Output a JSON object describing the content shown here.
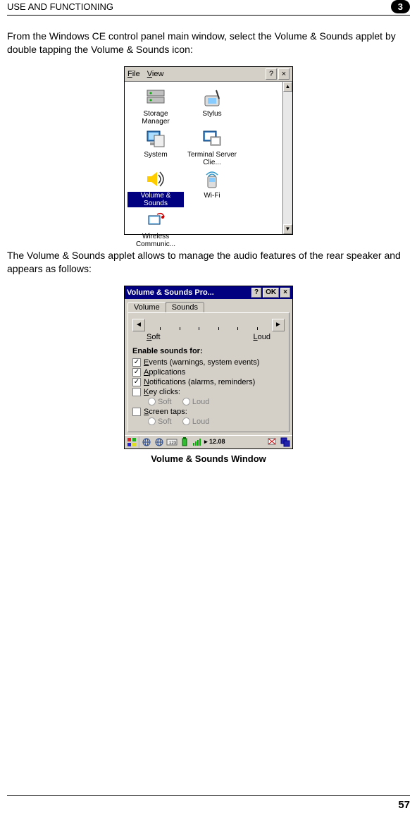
{
  "header": {
    "title": "USE AND FUNCTIONING",
    "badge": "3"
  },
  "intro_text": "From the Windows CE control panel main window, select the Volume & Sounds applet by double tapping the Volume & Sounds icon:",
  "control_panel": {
    "menu": {
      "file": "File",
      "view": "View",
      "help": "?",
      "close": "×"
    },
    "icons": [
      [
        {
          "label": "Storage Manager",
          "selected": false,
          "svg": "storage"
        },
        {
          "label": "Stylus",
          "selected": false,
          "svg": "stylus"
        }
      ],
      [
        {
          "label": "System",
          "selected": false,
          "svg": "system"
        },
        {
          "label": "Terminal Server Clie...",
          "selected": false,
          "svg": "terminal"
        }
      ],
      [
        {
          "label": "Volume & Sounds",
          "selected": true,
          "svg": "volume"
        },
        {
          "label": "Wi-Fi",
          "selected": false,
          "svg": "wifi"
        }
      ],
      [
        {
          "label": "Wireless Communic...",
          "selected": false,
          "svg": "wireless"
        }
      ]
    ],
    "scroll": {
      "up": "▲",
      "down": "▼"
    }
  },
  "middle_text": "The Volume & Sounds applet allows to manage the audio features of the rear speaker and appears as follows:",
  "volume_window": {
    "title": "Volume & Sounds Pro...",
    "buttons": {
      "help": "?",
      "ok": "OK",
      "close": "×"
    },
    "tabs": [
      "Volume",
      "Sounds"
    ],
    "active_tab": 0,
    "slider": {
      "left_btn": "◄",
      "right_btn": "►",
      "soft": "Soft",
      "loud": "Loud",
      "ticks": 6
    },
    "group_label": "Enable sounds for:",
    "checks": [
      {
        "checked": true,
        "label": "Events (warnings, system events)",
        "u": "E"
      },
      {
        "checked": true,
        "label": "Applications",
        "u": "A"
      },
      {
        "checked": true,
        "label": "Notifications (alarms, reminders)",
        "u": "N"
      },
      {
        "checked": false,
        "label": "Key clicks:",
        "u": "K"
      },
      {
        "checked": false,
        "label": "Screen taps:",
        "u": "S"
      }
    ],
    "sub_radio": {
      "soft": "Soft",
      "loud": "Loud"
    },
    "taskbar_time": "12.08"
  },
  "caption": "Volume & Sounds Window",
  "page_number": "57"
}
